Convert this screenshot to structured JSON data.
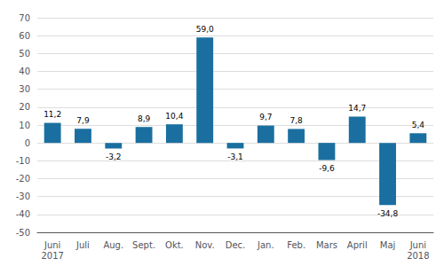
{
  "chart_data": {
    "type": "bar",
    "categories": [
      "Juni\n2017",
      "Juli",
      "Aug.",
      "Sept.",
      "Okt.",
      "Nov.",
      "Dec.",
      "Jan.",
      "Feb.",
      "Mars",
      "April",
      "Maj",
      "Juni\n2018"
    ],
    "values": [
      11.2,
      7.9,
      -3.2,
      8.9,
      10.4,
      59.0,
      -3.1,
      9.7,
      7.8,
      -9.6,
      14.7,
      -34.8,
      5.4
    ],
    "value_labels": [
      "11,2",
      "7,9",
      "-3,2",
      "8,9",
      "10,4",
      "59,0",
      "-3,1",
      "9,7",
      "7,8",
      "-9,6",
      "14,7",
      "-34,8",
      "5,4"
    ],
    "data_labels": true,
    "color": "#1a6fa0",
    "ylim": [
      -50,
      70
    ],
    "yticks": [
      -50,
      -40,
      -30,
      -20,
      -10,
      0,
      10,
      20,
      30,
      40,
      50,
      60,
      70
    ],
    "grid": true
  }
}
